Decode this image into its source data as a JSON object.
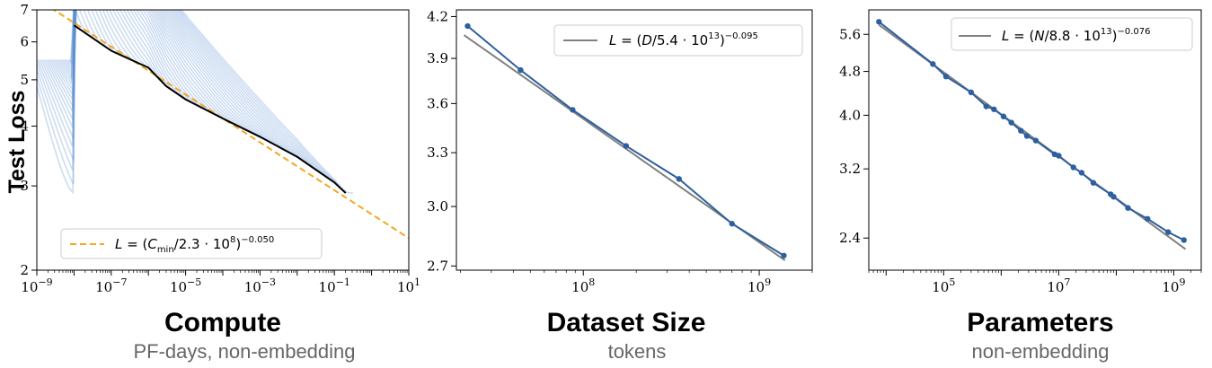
{
  "chart_data": [
    {
      "type": "line",
      "ylabel": "Test Loss",
      "xlabel": "Compute",
      "xsublabel": "PF-days, non-embedding",
      "xscale": "log",
      "yscale": "log",
      "xlim": [
        1e-09,
        10
      ],
      "ylim": [
        2,
        7
      ],
      "xticks": [
        {
          "v": 1e-09,
          "label": "10−9"
        },
        {
          "v": 1e-07,
          "label": "10−7"
        },
        {
          "v": 1e-05,
          "label": "10−5"
        },
        {
          "v": 0.001,
          "label": "10−3"
        },
        {
          "v": 0.1,
          "label": "10−1"
        },
        {
          "v": 10,
          "label": "101"
        }
      ],
      "yticks": [
        {
          "v": 2,
          "label": "2"
        },
        {
          "v": 3,
          "label": "3"
        },
        {
          "v": 4,
          "label": "4"
        },
        {
          "v": 5,
          "label": "5"
        },
        {
          "v": 6,
          "label": "6"
        },
        {
          "v": 7,
          "label": "7"
        }
      ],
      "legend": {
        "position": "lower left",
        "label": "L = (Cmin/2.3 · 108)−0.050",
        "color": "#f5a623",
        "style": "dashed"
      },
      "fit": {
        "coef": 230000000.0,
        "exp": -0.05
      },
      "frontier": {
        "color": "#000000",
        "x": [
          1e-08,
          1e-07,
          1e-06,
          3e-06,
          1e-05,
          0.0001,
          0.001,
          0.01,
          0.1,
          0.2
        ],
        "y": [
          6.5,
          5.75,
          5.3,
          4.85,
          4.55,
          4.15,
          3.8,
          3.45,
          3.05,
          2.9
        ]
      },
      "curves_color": "#5b8fd1",
      "curves_count": 42
    },
    {
      "type": "line",
      "xlabel": "Dataset Size",
      "xsublabel": "tokens",
      "xscale": "log",
      "yscale": "log",
      "xlim": [
        19000000.0,
        2000000000.0
      ],
      "ylim": [
        2.68,
        4.25
      ],
      "xticks": [
        {
          "v": 100000000.0,
          "label": "108"
        },
        {
          "v": 1000000000.0,
          "label": "109"
        }
      ],
      "yticks": [
        {
          "v": 2.7,
          "label": "2.7"
        },
        {
          "v": 3.0,
          "label": "3.0"
        },
        {
          "v": 3.3,
          "label": "3.3"
        },
        {
          "v": 3.6,
          "label": "3.6"
        },
        {
          "v": 3.9,
          "label": "3.9"
        },
        {
          "v": 4.2,
          "label": "4.2"
        }
      ],
      "legend": {
        "position": "upper right",
        "label": "L = (D/5.4 · 1013)−0.095",
        "color": "#808080",
        "style": "solid"
      },
      "fit": {
        "coef": 54000000000000.0,
        "exp": -0.095,
        "x_range": [
          21000000.0,
          1400000000.0
        ]
      },
      "series": [
        {
          "color": "#2e5f9e",
          "x": [
            22000000.0,
            44000000.0,
            87000000.0,
            175000000.0,
            350000000.0,
            700000000.0,
            1380000000.0
          ],
          "y": [
            4.13,
            3.82,
            3.56,
            3.34,
            3.15,
            2.91,
            2.75
          ]
        }
      ]
    },
    {
      "type": "line",
      "xlabel": "Parameters",
      "xsublabel": "non-embedding",
      "xscale": "log",
      "yscale": "log",
      "xlim": [
        5000.0,
        3000000000.0
      ],
      "ylim": [
        2.1,
        6.2
      ],
      "xticks": [
        {
          "v": 100000.0,
          "label": "105"
        },
        {
          "v": 10000000.0,
          "label": "107"
        },
        {
          "v": 1000000000.0,
          "label": "109"
        }
      ],
      "yticks": [
        {
          "v": 2.4,
          "label": "2.4"
        },
        {
          "v": 3.2,
          "label": "3.2"
        },
        {
          "v": 4.0,
          "label": "4.0"
        },
        {
          "v": 4.8,
          "label": "4.8"
        },
        {
          "v": 5.6,
          "label": "5.6"
        }
      ],
      "legend": {
        "position": "upper right",
        "label": "L = (N/8.8 · 1013)−0.076",
        "color": "#808080",
        "style": "solid"
      },
      "fit": {
        "coef": 88000000000000.0,
        "exp": -0.076,
        "x_range": [
          7500.0,
          1600000000.0
        ]
      },
      "series": [
        {
          "color": "#2e5f9e",
          "x": [
            7500.0,
            65000.0,
            110000.0,
            300000.0,
            550000.0,
            750000.0,
            1100000.0,
            1500000.0,
            2200000.0,
            2800000.0,
            4000000.0,
            8500000.0,
            10000000.0,
            18000000.0,
            25000000.0,
            40000000.0,
            80000000.0,
            90000000.0,
            160000000.0,
            350000000.0,
            800000000.0,
            1500000000.0
          ],
          "y": [
            5.9,
            4.95,
            4.7,
            4.4,
            4.15,
            4.1,
            3.98,
            3.88,
            3.75,
            3.67,
            3.6,
            3.4,
            3.38,
            3.22,
            3.15,
            3.02,
            2.88,
            2.85,
            2.72,
            2.6,
            2.46,
            2.38
          ]
        }
      ]
    }
  ]
}
